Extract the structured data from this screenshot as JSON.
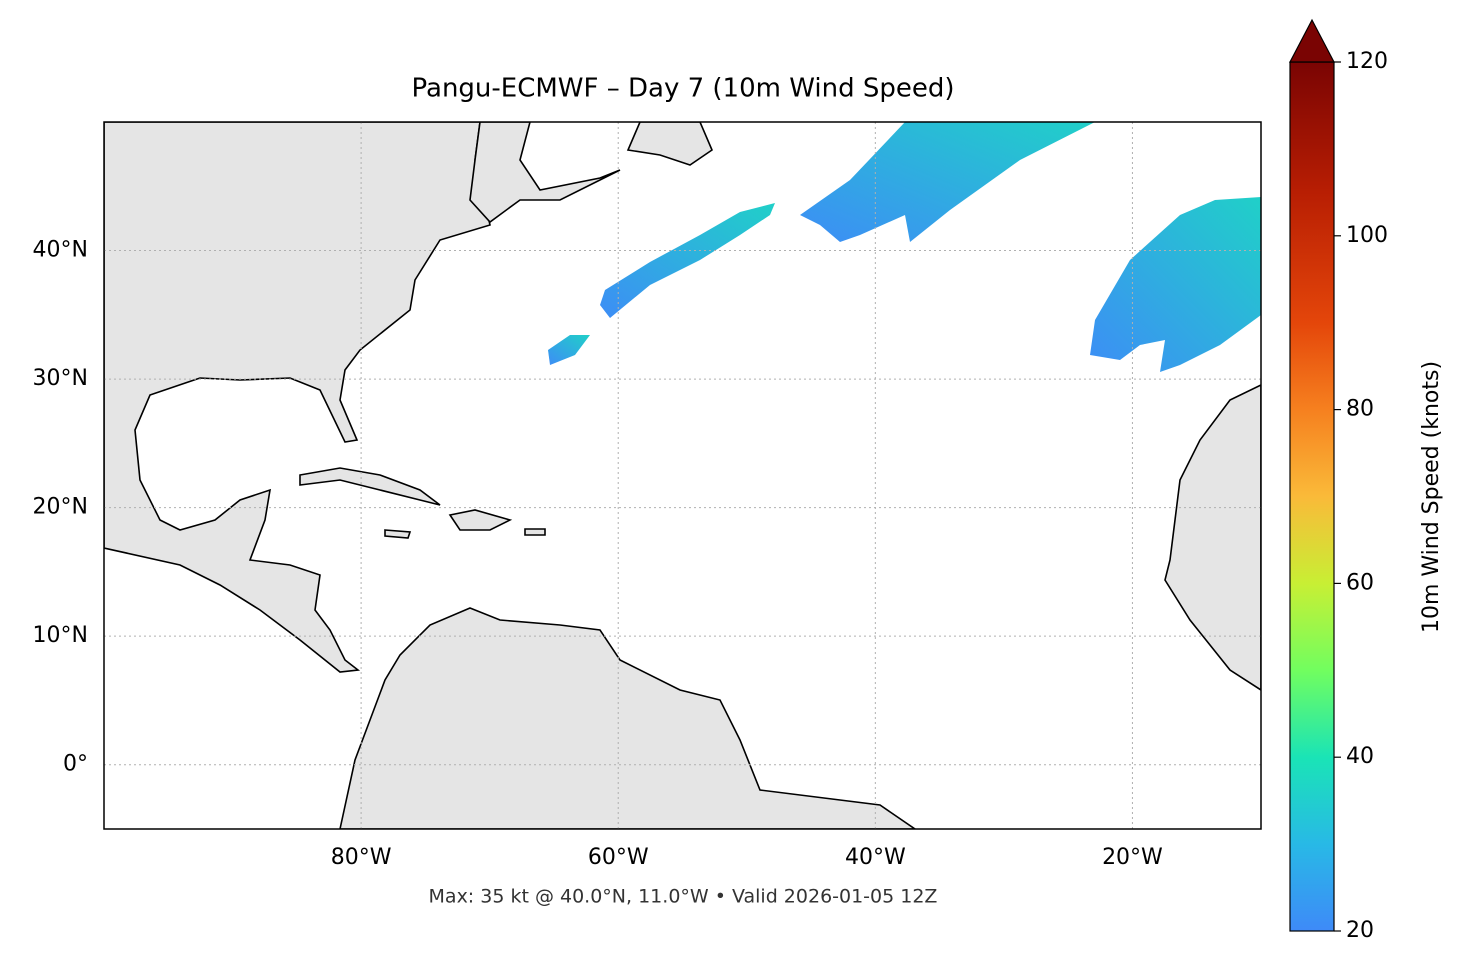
{
  "title": "Pangu-ECMWF – Day 7 (10m Wind Speed)",
  "map": {
    "xlim": [
      -100,
      -10
    ],
    "ylim": [
      -5,
      50
    ],
    "xticks": [
      {
        "value": -80,
        "label": "80°W"
      },
      {
        "value": -60,
        "label": "60°W"
      },
      {
        "value": -40,
        "label": "40°W"
      },
      {
        "value": -20,
        "label": "20°W"
      }
    ],
    "yticks": [
      {
        "value": 0,
        "label": "0°"
      },
      {
        "value": 10,
        "label": "10°N"
      },
      {
        "value": 20,
        "label": "20°N"
      },
      {
        "value": 30,
        "label": "30°N"
      },
      {
        "value": 40,
        "label": "40°N"
      }
    ],
    "grid": true
  },
  "colorbar": {
    "label": "10m Wind Speed (knots)",
    "clim": [
      20,
      120
    ],
    "ticks": [
      20,
      40,
      60,
      80,
      100,
      120
    ],
    "extend": "max"
  },
  "footer": "Max: 35 kt @ 40.0°N, 11.0°W • Valid 2026-01-05 12Z"
}
